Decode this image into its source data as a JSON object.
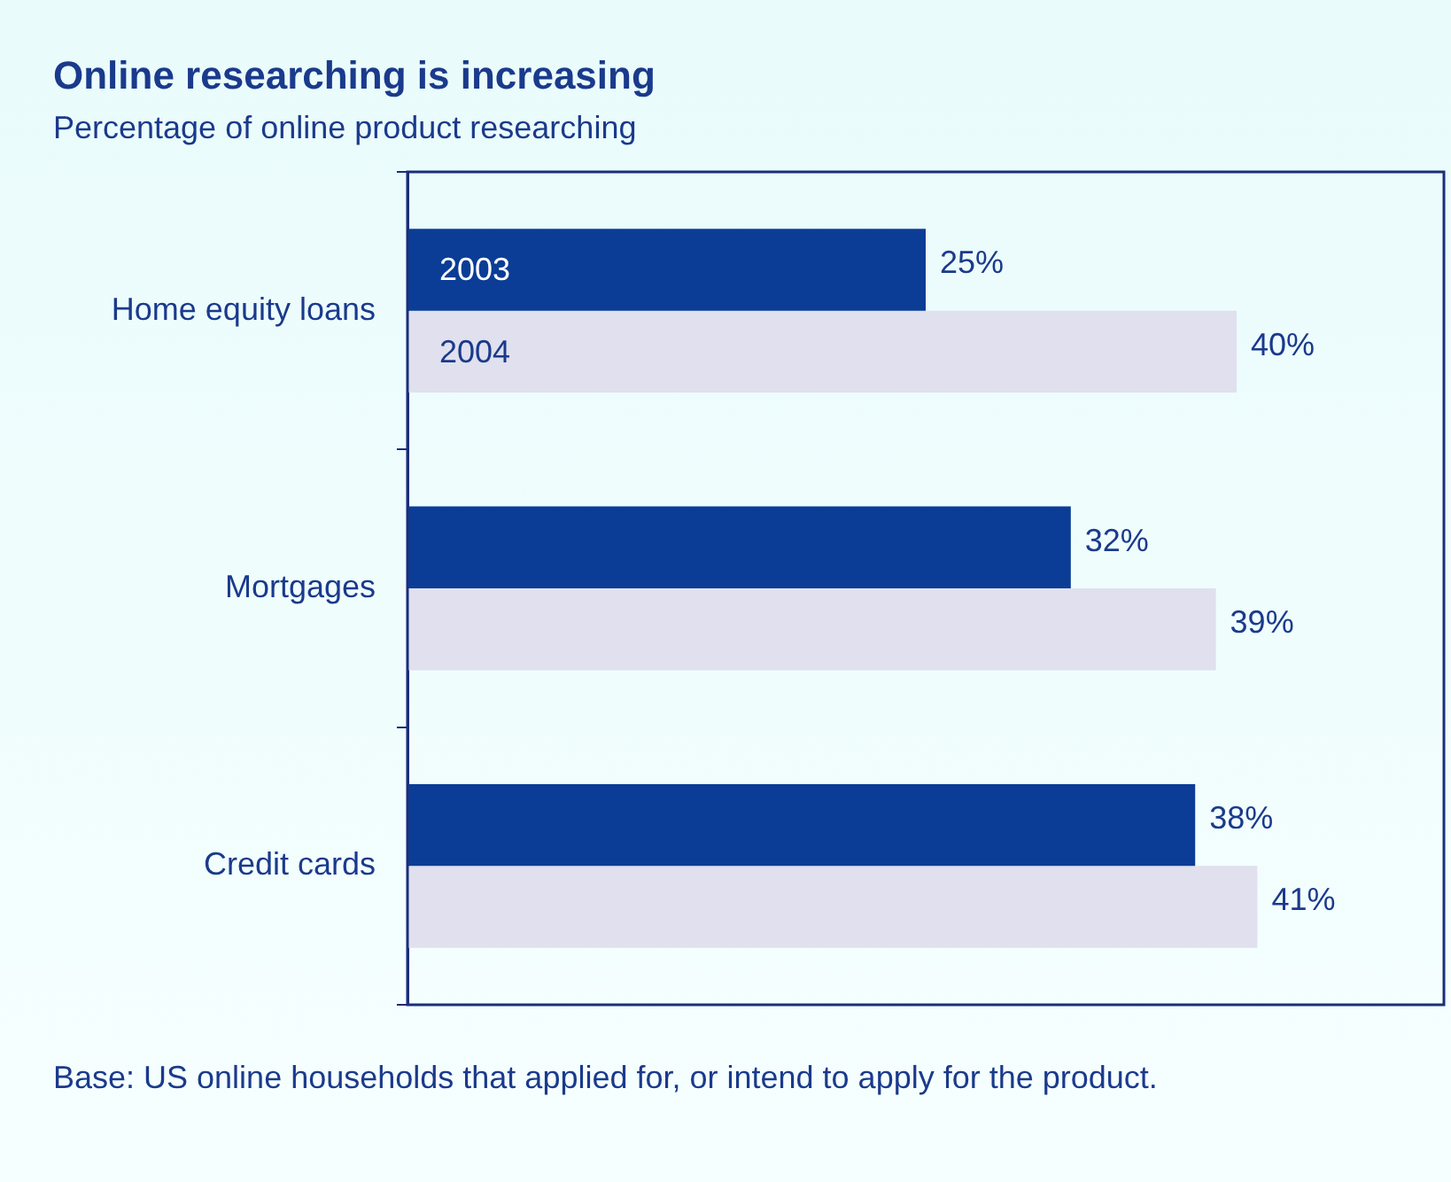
{
  "chart_data": {
    "type": "bar",
    "orientation": "horizontal",
    "title": "Online researching is increasing",
    "subtitle": "Percentage of online product researching",
    "categories": [
      "Home equity loans",
      "Mortgages",
      "Credit cards"
    ],
    "series": [
      {
        "name": "2003",
        "color": "#0b3d96",
        "values": [
          25,
          32,
          38
        ],
        "value_labels": [
          "25%",
          "32%",
          "38%"
        ]
      },
      {
        "name": "2004",
        "color": "#e0e0ee",
        "values": [
          40,
          39,
          41
        ],
        "value_labels": [
          "40%",
          "39%",
          "41%"
        ]
      }
    ],
    "tick_labels": "y",
    "annotations": [
      "Base: US online households that applied for, or intend to apply for the product."
    ]
  }
}
